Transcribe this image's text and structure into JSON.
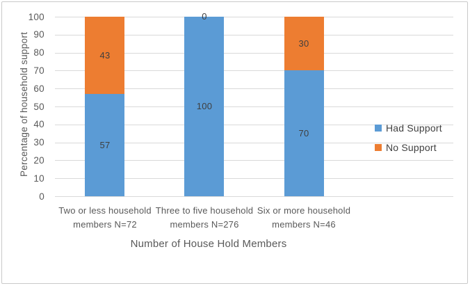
{
  "chart_data": {
    "type": "bar",
    "stacked": true,
    "title": "",
    "xlabel": "Number of House Hold Members",
    "ylabel": "Percentage of household support",
    "ylim": [
      0,
      100
    ],
    "ytick_step": 10,
    "yticks": [
      0,
      10,
      20,
      30,
      40,
      50,
      60,
      70,
      80,
      90,
      100
    ],
    "grid": true,
    "legend_position": "right",
    "categories": [
      "Two or less household members N=72",
      "Three to five household members N=276",
      "Six or more household members N=46"
    ],
    "category_lines": [
      [
        "Two or less household",
        "members N=72"
      ],
      [
        "Three to five household",
        "members N=276"
      ],
      [
        "Six or more household",
        "members N=46"
      ]
    ],
    "series": [
      {
        "name": "Had Support",
        "color": "#5B9BD5",
        "values": [
          57,
          100,
          70
        ]
      },
      {
        "name": "No Support",
        "color": "#ED7D31",
        "values": [
          43,
          0,
          30
        ]
      }
    ],
    "data_labels_shown": true
  },
  "colors": {
    "background": "#FFFFFF",
    "border": "#C9C9C9",
    "gridline": "#D9D9D9",
    "axis_text": "#595959",
    "data_label": "#3F3F3F",
    "legend_text": "#404040"
  }
}
